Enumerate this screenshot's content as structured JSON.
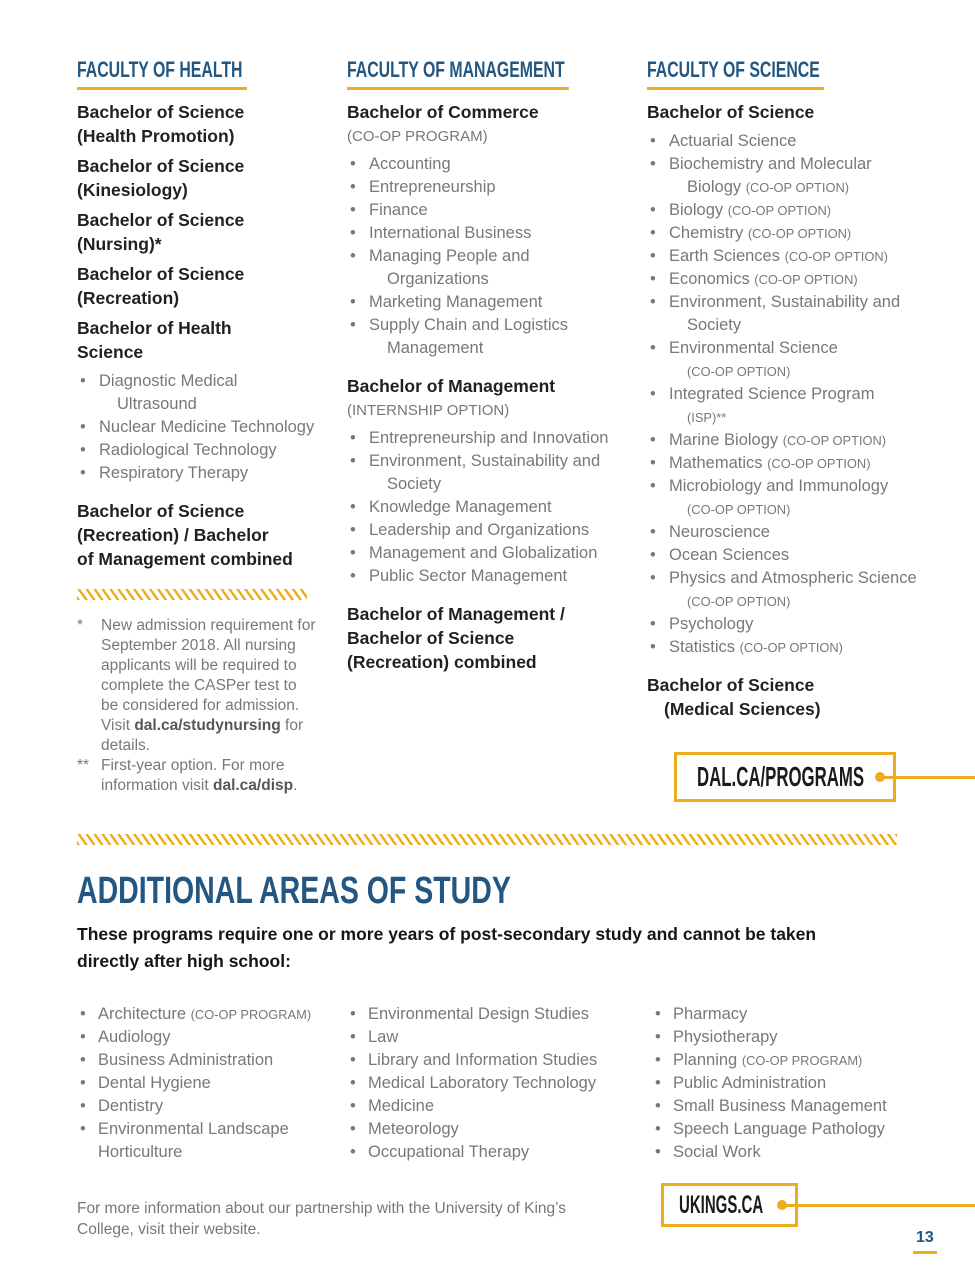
{
  "page": {
    "number": "13"
  },
  "colors": {
    "heading_blue": "#235781",
    "gold": "#EDAD1C",
    "body_gray": "#77787B",
    "text_black": "#231F20"
  },
  "callouts": {
    "dal": "DAL.CA/PROGRAMS",
    "ukings": "UKINGS.CA"
  },
  "faculties": [
    {
      "slug": "health",
      "heading": "FACULTY OF HEALTH",
      "blocks": [
        {
          "t": "prog",
          "text": "Bachelor of Science¶(Health Promotion)"
        },
        {
          "t": "prog",
          "text": "Bachelor of Science¶(Kinesiology)"
        },
        {
          "t": "prog",
          "text": "Bachelor of Science¶(Nursing)*"
        },
        {
          "t": "prog",
          "text": "Bachelor of Science¶(Recreation)"
        },
        {
          "t": "prog",
          "text": "Bachelor of Health¶Science"
        },
        {
          "t": "bullets",
          "items": [
            "Diagnostic Medical Ultrasound",
            "Nuclear Medicine Technology",
            "Radiological Technology",
            "Respiratory Therapy"
          ]
        },
        {
          "t": "prog",
          "text": "Bachelor of Science¶(Recreation) / Bachelor¶of Management combined"
        },
        {
          "t": "hatch"
        },
        {
          "t": "fns",
          "items": [
            {
              "marker": "*",
              "text": "New admission requirement for September 2018. All nursing applicants will be required to complete the CASPer test to be considered for admission. Visit **dal.ca/studynursing** for details."
            },
            {
              "marker": "**",
              "text": "First-year option. For more information visit **dal.ca/disp**."
            }
          ]
        }
      ]
    },
    {
      "slug": "management",
      "heading": "FACULTY OF MANAGEMENT",
      "blocks": [
        {
          "t": "prog",
          "text": "Bachelor of Commerce"
        },
        {
          "t": "caption",
          "text": "(CO-OP PROGRAM)"
        },
        {
          "t": "bullets",
          "items": [
            "Accounting",
            "Entrepreneurship",
            "Finance",
            "International Business",
            "Managing People and Organizations",
            "Marketing Management",
            "Supply Chain and Logistics Management"
          ]
        },
        {
          "t": "prog",
          "text": "Bachelor of Management"
        },
        {
          "t": "caption",
          "text": "(INTERNSHIP OPTION)"
        },
        {
          "t": "bullets",
          "items": [
            "Entrepreneurship and Innovation",
            "Environment, Sustainability and Society",
            "Knowledge Management",
            "Leadership and Organizations",
            "Management and Globalization",
            "Public Sector Management"
          ]
        },
        {
          "t": "prog",
          "text": "Bachelor of Management /¶Bachelor of Science¶(Recreation) combined"
        }
      ]
    },
    {
      "slug": "science",
      "heading": "FACULTY OF SCIENCE",
      "blocks": [
        {
          "t": "prog",
          "text": "Bachelor of Science"
        },
        {
          "t": "bullets",
          "items": [
            "Actuarial Science",
            "Biochemistry and Molecular Biology «(CO-OP OPTION)»",
            "Biology «(CO-OP OPTION)»",
            "Chemistry «(CO-OP OPTION)»",
            "Earth Sciences «(CO-OP OPTION)»",
            "Economics «(CO-OP OPTION)»",
            "Environment, Sustainability and Society",
            "Environmental Science «(CO-OP OPTION)»",
            "Integrated Science Program «(ISP)**»",
            "Marine Biology «(CO-OP OPTION)»",
            "Mathematics «(CO-OP OPTION)»",
            "Microbiology and Immunology «(CO-OP OPTION)»",
            "Neuroscience",
            "Ocean Sciences",
            "Physics and Atmospheric Science «(CO-OP OPTION)»",
            "Psychology",
            "Statistics «(CO-OP OPTION)»"
          ]
        },
        {
          "t": "prog",
          "ind2": true,
          "text": "Bachelor of Science¶(Medical Sciences)"
        }
      ]
    }
  ],
  "additional": {
    "title": "ADDITIONAL AREAS OF STUDY",
    "subtitle": "These programs require one or more years of post-secondary study and cannot be taken directly after high school:",
    "columns": [
      [
        "Architecture «(CO-OP PROGRAM)»",
        "Audiology",
        "Business Administration",
        "Dental Hygiene",
        "Dentistry",
        "Environmental Landscape Horticulture"
      ],
      [
        "Environmental Design Studies",
        "Law",
        "Library and Information Studies",
        "Medical Laboratory Technology",
        "Medicine",
        "Meteorology",
        "Occupational Therapy"
      ],
      [
        "Pharmacy",
        "Physiotherapy",
        "Planning «(CO-OP PROGRAM)»",
        "Public Administration",
        "Small Business Management",
        "Speech Language Pathology",
        "Social Work"
      ]
    ]
  },
  "footer": {
    "note": "For more information about our partnership with the University of King’s College, visit their website."
  }
}
